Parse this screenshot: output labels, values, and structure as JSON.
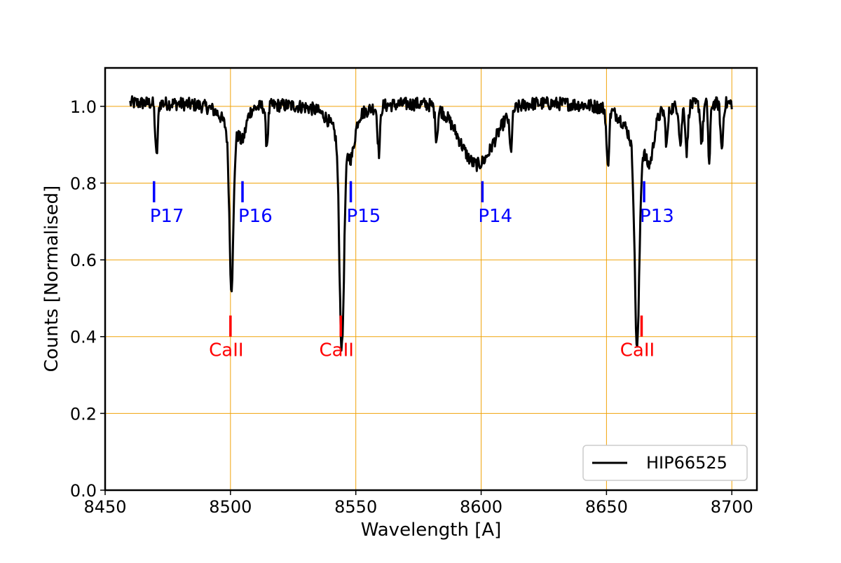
{
  "chart_data": {
    "type": "line",
    "title": "",
    "xlabel": "Wavelength [A]",
    "ylabel": "Counts [Normalised]",
    "xlim": [
      8450,
      8710
    ],
    "ylim": [
      0.0,
      1.1
    ],
    "xticks": [
      8450,
      8500,
      8550,
      8600,
      8650,
      8700
    ],
    "yticks": [
      0.0,
      0.2,
      0.4,
      0.6,
      0.8,
      1.0
    ],
    "xtick_labels": [
      "8450",
      "8500",
      "8550",
      "8600",
      "8650",
      "8700"
    ],
    "ytick_labels": [
      "0.0",
      "0.2",
      "0.4",
      "0.6",
      "0.8",
      "1.0"
    ],
    "grid": true,
    "grid_color": "#f0a30a",
    "legend": {
      "position": "lower-right",
      "entries": [
        "HIP66525"
      ]
    },
    "series": [
      {
        "name": "HIP66525",
        "color": "#000000",
        "continuum": 1.01,
        "x_start": 8460,
        "x_end": 8700,
        "shape_notes": "generated from absorption lines below",
        "absorption_lines": [
          {
            "center": 8470.5,
            "depth": 0.14,
            "width": 0.5
          },
          {
            "center": 8500.4,
            "depth": 0.4,
            "width": 0.8,
            "wing_depth": 0.08,
            "wing_width": 4.0
          },
          {
            "center": 8504.8,
            "depth": 0.06,
            "width": 1.4
          },
          {
            "center": 8514.5,
            "depth": 0.1,
            "width": 0.5
          },
          {
            "center": 8544.4,
            "depth": 0.54,
            "width": 0.9,
            "wing_depth": 0.1,
            "wing_width": 5.0
          },
          {
            "center": 8548.2,
            "depth": 0.08,
            "width": 1.3
          },
          {
            "center": 8559.2,
            "depth": 0.12,
            "width": 0.5
          },
          {
            "center": 8582.2,
            "depth": 0.08,
            "width": 0.5
          },
          {
            "center": 8598.4,
            "depth": 0.16,
            "width": 7.0
          },
          {
            "center": 8611.8,
            "depth": 0.1,
            "width": 0.5
          },
          {
            "center": 8650.5,
            "depth": 0.15,
            "width": 0.5
          },
          {
            "center": 8662.2,
            "depth": 0.52,
            "width": 0.9,
            "wing_depth": 0.12,
            "wing_width": 5.0
          },
          {
            "center": 8667.2,
            "depth": 0.1,
            "width": 1.6
          },
          {
            "center": 8674.0,
            "depth": 0.09,
            "width": 0.5
          },
          {
            "center": 8679.5,
            "depth": 0.1,
            "width": 0.5
          },
          {
            "center": 8682.0,
            "depth": 0.12,
            "width": 0.5
          },
          {
            "center": 8688.0,
            "depth": 0.1,
            "width": 0.5
          },
          {
            "center": 8691.0,
            "depth": 0.16,
            "width": 0.4
          },
          {
            "center": 8696.0,
            "depth": 0.12,
            "width": 0.5
          }
        ]
      }
    ],
    "annotations": [
      {
        "label": "P17",
        "x": 8469.5,
        "y_low": 0.75,
        "y_high": 0.805,
        "color": "#0000ff"
      },
      {
        "label": "P16",
        "x": 8504.8,
        "y_low": 0.75,
        "y_high": 0.805,
        "color": "#0000ff"
      },
      {
        "label": "P15",
        "x": 8548.0,
        "y_low": 0.75,
        "y_high": 0.805,
        "color": "#0000ff"
      },
      {
        "label": "P14",
        "x": 8600.5,
        "y_low": 0.75,
        "y_high": 0.805,
        "color": "#0000ff"
      },
      {
        "label": "P13",
        "x": 8665.0,
        "y_low": 0.75,
        "y_high": 0.805,
        "color": "#0000ff"
      },
      {
        "label": "CaII",
        "x": 8500.0,
        "y_low": 0.4,
        "y_high": 0.455,
        "color": "#ff0000"
      },
      {
        "label": "CaII",
        "x": 8544.0,
        "y_low": 0.4,
        "y_high": 0.455,
        "color": "#ff0000"
      },
      {
        "label": "CaII",
        "x": 8664.0,
        "y_low": 0.4,
        "y_high": 0.455,
        "color": "#ff0000"
      }
    ]
  }
}
